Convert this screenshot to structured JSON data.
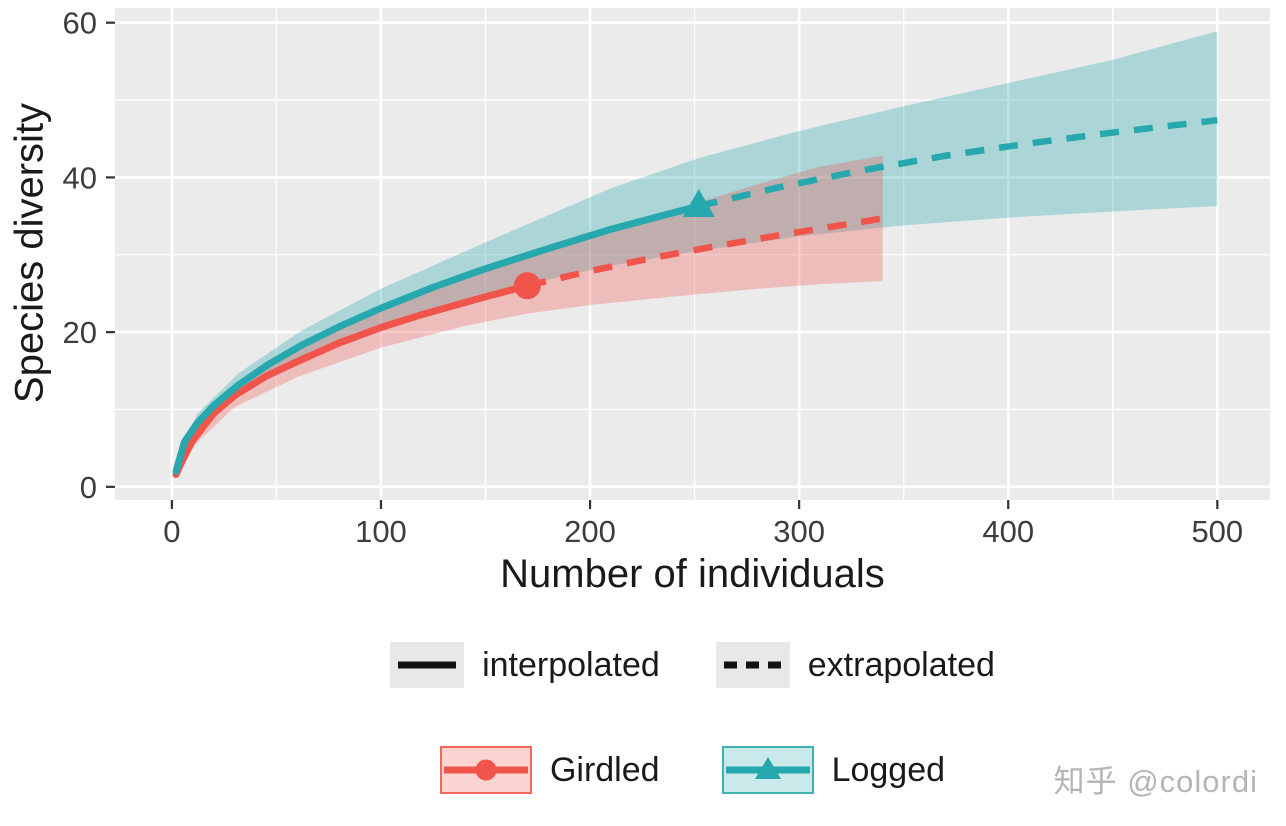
{
  "chart_data": {
    "type": "line",
    "title": "",
    "xlabel": "Number of individuals",
    "ylabel": "Species diversity",
    "xlim": [
      -27.2,
      525.2
    ],
    "ylim": [
      -1.7,
      61.9
    ],
    "x_ticks": {
      "major": [
        0,
        100,
        200,
        300,
        400,
        500
      ],
      "minor": [
        50,
        150,
        250,
        350,
        450
      ]
    },
    "y_ticks": {
      "major": [
        0,
        20,
        40,
        60
      ],
      "minor": [
        10,
        30,
        50
      ]
    },
    "panel_bg": "#EBEBEB",
    "grid_color": "#FFFFFF",
    "tick_color": "#333333",
    "legend_linetype": [
      {
        "label": "interpolated",
        "dash": false
      },
      {
        "label": "extrapolated",
        "dash": true
      }
    ],
    "series": [
      {
        "name": "Girdled",
        "color": "#F1544B",
        "ribbon_opacity": 0.3,
        "marker": "circle",
        "observed": {
          "x": 170,
          "y": 26
        },
        "interpolated": {
          "x": [
            2,
            5,
            10,
            20,
            30,
            45,
            60,
            80,
            100,
            120,
            145,
            170
          ],
          "y": [
            1.6,
            3.4,
            6.0,
            9.5,
            11.8,
            14.3,
            16.2,
            18.6,
            20.6,
            22.3,
            24.2,
            26.0
          ]
        },
        "extrapolated": {
          "x": [
            170,
            200,
            230,
            260,
            290,
            315,
            340
          ],
          "y": [
            26.0,
            27.9,
            29.6,
            31.1,
            32.5,
            33.6,
            34.7
          ]
        },
        "ribbon": {
          "x": [
            2,
            10,
            30,
            60,
            100,
            140,
            170,
            200,
            240,
            280,
            310,
            340
          ],
          "lower": [
            1.3,
            5.2,
            10.3,
            14.2,
            18.0,
            20.8,
            22.4,
            23.5,
            24.6,
            25.6,
            26.2,
            26.6
          ],
          "upper": [
            1.9,
            6.8,
            13.3,
            18.2,
            23.2,
            27.0,
            29.6,
            32.3,
            35.8,
            39.1,
            41.4,
            42.8
          ]
        }
      },
      {
        "name": "Logged",
        "color": "#26A8AE",
        "ribbon_opacity": 0.32,
        "marker": "triangle",
        "observed": {
          "x": 252,
          "y": 36.3
        },
        "interpolated": {
          "x": [
            2,
            6,
            12,
            20,
            32,
            46,
            62,
            80,
            100,
            125,
            150,
            180,
            210,
            252
          ],
          "y": [
            2.0,
            5.8,
            8.2,
            10.5,
            13.2,
            15.8,
            18.3,
            20.7,
            23.1,
            25.8,
            28.2,
            30.8,
            33.3,
            36.3
          ]
        },
        "extrapolated": {
          "x": [
            252,
            290,
            330,
            370,
            410,
            450,
            500
          ],
          "y": [
            36.3,
            38.7,
            40.9,
            42.8,
            44.4,
            45.8,
            47.4
          ]
        },
        "ribbon": {
          "x": [
            2,
            12,
            32,
            62,
            100,
            150,
            210,
            252,
            300,
            350,
            400,
            450,
            500
          ],
          "lower": [
            1.6,
            7.0,
            11.7,
            16.4,
            20.8,
            25.0,
            28.6,
            30.5,
            32.4,
            33.8,
            34.8,
            35.6,
            36.3
          ],
          "upper": [
            2.4,
            9.4,
            14.7,
            20.2,
            25.6,
            31.6,
            38.6,
            42.5,
            46.0,
            49.2,
            52.2,
            55.2,
            58.9
          ]
        }
      }
    ]
  },
  "watermark": "知乎 @colordi"
}
